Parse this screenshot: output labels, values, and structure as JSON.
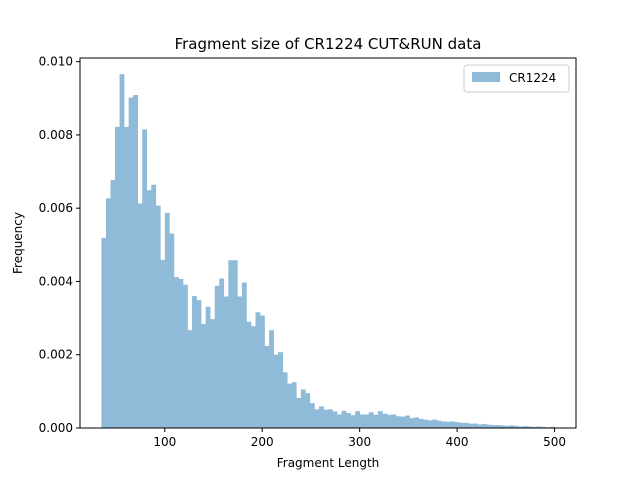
{
  "chart_data": {
    "type": "bar",
    "title": "Fragment size of CR1224 CUT&RUN data",
    "xlabel": "Fragment Length",
    "ylabel": "Frequency",
    "xlim": [
      13,
      522
    ],
    "ylim": [
      0,
      0.0101
    ],
    "x_ticks": [
      100,
      200,
      300,
      400,
      500
    ],
    "y_ticks": [
      0.0,
      0.002,
      0.004,
      0.006,
      0.008,
      0.01
    ],
    "x_tick_labels": [
      "100",
      "200",
      "300",
      "400",
      "500"
    ],
    "y_tick_labels": [
      "0.000",
      "0.002",
      "0.004",
      "0.006",
      "0.008",
      "0.010"
    ],
    "grid": false,
    "legend_position": "top-right",
    "bar_color": "#8fbad8",
    "bin_start": 35,
    "bin_width": 4.65,
    "series": [
      {
        "name": "CR1224",
        "values": [
          0.00519,
          0.00627,
          0.00677,
          0.00822,
          0.00966,
          0.00822,
          0.00902,
          0.00909,
          0.00613,
          0.00815,
          0.00649,
          0.00664,
          0.00607,
          0.00459,
          0.00587,
          0.00531,
          0.00412,
          0.00407,
          0.00391,
          0.00267,
          0.0036,
          0.00349,
          0.00284,
          0.00331,
          0.00297,
          0.00388,
          0.00408,
          0.00359,
          0.00458,
          0.00458,
          0.00359,
          0.00397,
          0.0029,
          0.00278,
          0.00316,
          0.00307,
          0.00224,
          0.00267,
          0.002,
          0.00207,
          0.00152,
          0.00121,
          0.00125,
          0.00082,
          0.00105,
          0.00095,
          0.00068,
          0.00051,
          0.00059,
          0.0005,
          0.00051,
          0.00045,
          0.00037,
          0.00047,
          0.00041,
          0.00035,
          0.00046,
          0.00037,
          0.00037,
          0.00043,
          0.00036,
          0.00046,
          0.00039,
          0.00036,
          0.00037,
          0.00032,
          0.00031,
          0.00034,
          0.00027,
          0.00029,
          0.00025,
          0.00023,
          0.00021,
          0.00023,
          0.0002,
          0.00018,
          0.00017,
          0.00018,
          0.00016,
          0.00014,
          0.00014,
          0.00012,
          0.00012,
          0.0001,
          0.00011,
          9e-05,
          8e-05,
          8e-05,
          7e-05,
          6e-05,
          7e-05,
          6e-05,
          4e-05,
          5e-05,
          4e-05,
          3e-05,
          4e-05,
          3e-05,
          2e-05,
          3e-05
        ]
      }
    ]
  }
}
